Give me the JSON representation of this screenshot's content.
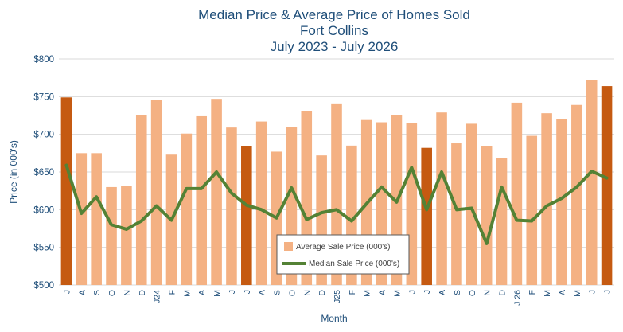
{
  "chart_data": {
    "type": "bar",
    "title_lines": [
      "Median Price & Average Price of Homes Sold",
      "Fort Collins",
      "July 2023 - July 2026"
    ],
    "xlabel": "Month",
    "ylabel": "Price (in 000's)",
    "ylim": [
      500,
      800
    ],
    "yticks": [
      "$500",
      "$550",
      "$600",
      "$650",
      "$700",
      "$750",
      "$800"
    ],
    "ytick_values": [
      500,
      550,
      600,
      650,
      700,
      750,
      800
    ],
    "grid": true,
    "legend_position": "bottom-center",
    "categories": [
      "J",
      "A",
      "S",
      "O",
      "N",
      "D",
      "J24",
      "F",
      "M",
      "A",
      "M",
      "J",
      "J",
      "A",
      "S",
      "O",
      "N",
      "D",
      "J25",
      "F",
      "M",
      "A",
      "M",
      "J",
      "J",
      "A",
      "S",
      "O",
      "N",
      "D",
      "J 26",
      "F",
      "M",
      "A",
      "M",
      "J",
      "J"
    ],
    "series": [
      {
        "name": "Average Sale Price (000's)",
        "type": "bar",
        "values": [
          749,
          675,
          675,
          630,
          632,
          726,
          746,
          673,
          701,
          724,
          747,
          709,
          684,
          717,
          677,
          710,
          731,
          672,
          741,
          685,
          719,
          716,
          726,
          715,
          682,
          729,
          688,
          714,
          684,
          669,
          742,
          698,
          728,
          720,
          739,
          772,
          764
        ]
      },
      {
        "name": "Median Sale Price (000's)",
        "type": "line",
        "values": [
          659,
          595,
          617,
          580,
          574,
          585,
          605,
          586,
          628,
          628,
          650,
          622,
          606,
          600,
          589,
          629,
          587,
          596,
          600,
          585,
          608,
          630,
          610,
          656,
          600,
          650,
          600,
          602,
          555,
          630,
          586,
          585,
          605,
          615,
          630,
          651,
          642
        ]
      }
    ],
    "highlight_indices": [
      0,
      12,
      24,
      36
    ],
    "colors": {
      "bar": "#F4B183",
      "bar_highlight": "#C55A11",
      "line": "#548235",
      "text": "#1F4E79",
      "grid": "#D9D9D9"
    }
  }
}
